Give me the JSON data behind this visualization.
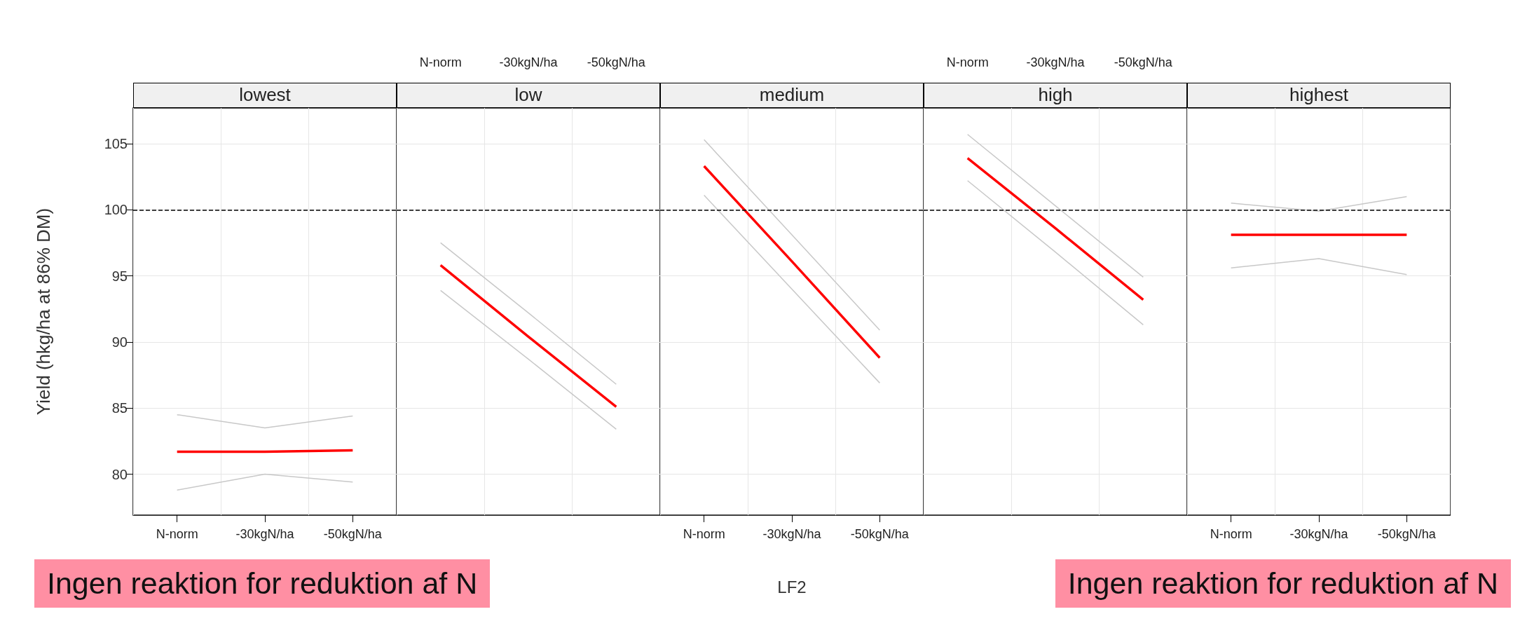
{
  "chart_data": [
    {
      "type": "line",
      "title": "lowest",
      "ylabel": "Yield (hkg/ha at 86% DM)",
      "categories": [
        "N-norm",
        "-30kgN/ha",
        "-50kgN/ha"
      ],
      "series": [
        {
          "color": "#ff0000",
          "values": [
            81.7,
            81.7,
            81.8
          ]
        },
        {
          "color": "#c8c8c8",
          "values": [
            78.8,
            80.0,
            79.4
          ]
        },
        {
          "color": "#c8c8c8",
          "values": [
            84.5,
            83.5,
            84.4
          ]
        }
      ],
      "ylim": [
        76.9,
        107.7
      ],
      "yticks": [
        80,
        85,
        90,
        95,
        100,
        105
      ],
      "grid": true,
      "ref_lines": [
        {
          "axis": "y",
          "value": 100,
          "line_style": "dashed",
          "color": "#000000"
        }
      ],
      "annotations": [
        "Ingen reaktion for reduktion af N"
      ]
    },
    {
      "type": "line",
      "title": "low",
      "categories": [
        "N-norm",
        "-30kgN/ha",
        "-50kgN/ha"
      ],
      "series": [
        {
          "color": "#ff0000",
          "values": [
            95.8,
            90.4,
            85.1
          ]
        },
        {
          "color": "#c8c8c8",
          "values": [
            93.9,
            88.7,
            83.4
          ]
        },
        {
          "color": "#c8c8c8",
          "values": [
            97.5,
            92.2,
            86.8
          ]
        }
      ],
      "ylim": [
        76.9,
        107.7
      ],
      "yticks": [
        80,
        85,
        90,
        95,
        100,
        105
      ],
      "grid": true,
      "tick_labels": "x",
      "ref_lines": [
        {
          "axis": "y",
          "value": 100,
          "line_style": "dashed",
          "color": "#000000"
        }
      ]
    },
    {
      "type": "line",
      "title": "medium",
      "xlabel": "LF2",
      "categories": [
        "N-norm",
        "-30kgN/ha",
        "-50kgN/ha"
      ],
      "series": [
        {
          "color": "#ff0000",
          "values": [
            103.3,
            96.1,
            88.8
          ]
        },
        {
          "color": "#c8c8c8",
          "values": [
            101.1,
            94.0,
            86.9
          ]
        },
        {
          "color": "#c8c8c8",
          "values": [
            105.3,
            98.1,
            90.9
          ]
        }
      ],
      "ylim": [
        76.9,
        107.7
      ],
      "yticks": [
        80,
        85,
        90,
        95,
        100,
        105
      ],
      "grid": true,
      "tick_labels": "x",
      "ref_lines": [
        {
          "axis": "y",
          "value": 100,
          "line_style": "dashed",
          "color": "#000000"
        }
      ]
    },
    {
      "type": "line",
      "title": "high",
      "categories": [
        "N-norm",
        "-30kgN/ha",
        "-50kgN/ha"
      ],
      "series": [
        {
          "color": "#ff0000",
          "values": [
            103.9,
            98.6,
            93.2
          ]
        },
        {
          "color": "#c8c8c8",
          "values": [
            102.2,
            96.8,
            91.3
          ]
        },
        {
          "color": "#c8c8c8",
          "values": [
            105.7,
            100.3,
            94.9
          ]
        }
      ],
      "ylim": [
        76.9,
        107.7
      ],
      "yticks": [
        80,
        85,
        90,
        95,
        100,
        105
      ],
      "grid": true,
      "tick_labels": "x",
      "ref_lines": [
        {
          "axis": "y",
          "value": 100,
          "line_style": "dashed",
          "color": "#000000"
        }
      ]
    },
    {
      "type": "line",
      "title": "highest",
      "categories": [
        "N-norm",
        "-30kgN/ha",
        "-50kgN/ha"
      ],
      "series": [
        {
          "color": "#ff0000",
          "values": [
            98.1,
            98.1,
            98.1
          ]
        },
        {
          "color": "#c8c8c8",
          "values": [
            95.6,
            96.3,
            95.1
          ]
        },
        {
          "color": "#c8c8c8",
          "values": [
            100.5,
            99.9,
            101.0
          ]
        }
      ],
      "ylim": [
        76.9,
        107.7
      ],
      "yticks": [
        80,
        85,
        90,
        95,
        100,
        105
      ],
      "grid": true,
      "tick_labels": "x",
      "ref_lines": [
        {
          "axis": "y",
          "value": 100,
          "line_style": "dashed",
          "color": "#000000"
        }
      ],
      "annotations": [
        "Ingen reaktion for reduktion af N"
      ]
    }
  ]
}
